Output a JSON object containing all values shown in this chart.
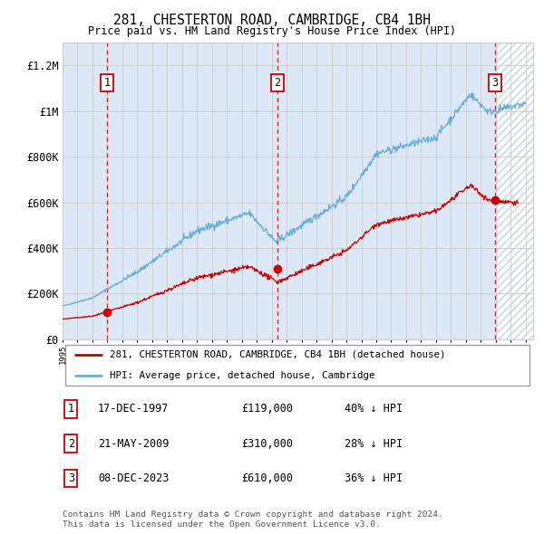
{
  "title1": "281, CHESTERTON ROAD, CAMBRIDGE, CB4 1BH",
  "title2": "Price paid vs. HM Land Registry's House Price Index (HPI)",
  "ylim": [
    0,
    1300000
  ],
  "yticks": [
    0,
    200000,
    400000,
    600000,
    800000,
    1000000,
    1200000
  ],
  "ytick_labels": [
    "£0",
    "£200K",
    "£400K",
    "£600K",
    "£800K",
    "£1M",
    "£1.2M"
  ],
  "background_color": "#ffffff",
  "plot_bg_color": "#dce8f5",
  "hatch_color": "#aec8e0",
  "grid_color": "#cccccc",
  "hpi_line_color": "#6aaed6",
  "price_line_color": "#cc0000",
  "dashed_line_color": "#cc0000",
  "transaction1": {
    "date_num": 1997.96,
    "price": 119000,
    "label": "1"
  },
  "transaction2": {
    "date_num": 2009.38,
    "price": 310000,
    "label": "2"
  },
  "transaction3": {
    "date_num": 2023.93,
    "price": 610000,
    "label": "3"
  },
  "xmin": 1995.0,
  "xmax": 2026.5,
  "legend_entries": [
    "281, CHESTERTON ROAD, CAMBRIDGE, CB4 1BH (detached house)",
    "HPI: Average price, detached house, Cambridge"
  ],
  "footer1": "Contains HM Land Registry data © Crown copyright and database right 2024.",
  "footer2": "This data is licensed under the Open Government Licence v3.0.",
  "table": [
    {
      "label": "1",
      "date": "17-DEC-1997",
      "price": "£119,000",
      "note": "40% ↓ HPI"
    },
    {
      "label": "2",
      "date": "21-MAY-2009",
      "price": "£310,000",
      "note": "28% ↓ HPI"
    },
    {
      "label": "3",
      "date": "08-DEC-2023",
      "price": "£610,000",
      "note": "36% ↓ HPI"
    }
  ]
}
